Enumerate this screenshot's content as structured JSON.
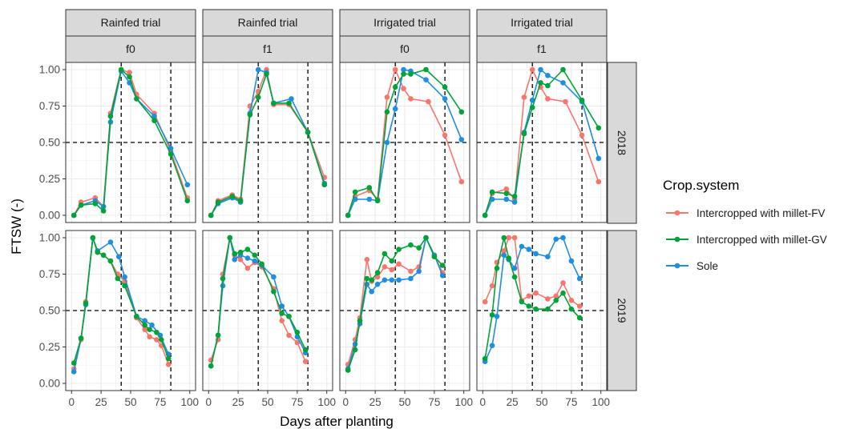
{
  "chart_data": {
    "type": "line",
    "xlabel": "Days after planting",
    "ylabel": "FTSW (-)",
    "xlim": [
      0,
      100
    ],
    "ylim": [
      0,
      1
    ],
    "x_ticks": [
      "0",
      "25",
      "50",
      "75",
      "100"
    ],
    "y_ticks": [
      "0.00",
      "0.25",
      "0.50",
      "0.75",
      "1.00"
    ],
    "y_tick_values": [
      0,
      0.25,
      0.5,
      0.75,
      1.0
    ],
    "x_tick_values": [
      0,
      25,
      50,
      75,
      100
    ],
    "grid": true,
    "legend_position": "right",
    "legend": {
      "title": "Crop.system",
      "entries": [
        {
          "name": "Intercropped with millet-FV",
          "color": "#f8766d"
        },
        {
          "name": "Intercropped with millet-GV",
          "color": "#00a339"
        },
        {
          "name": "Sole",
          "color": "#1f8ee0"
        }
      ]
    },
    "reference_lines": {
      "vertical_x": [
        42,
        84
      ],
      "horizontal_y": 0.5
    },
    "column_strips": [
      {
        "trial": "Rainfed trial",
        "f": "f0"
      },
      {
        "trial": "Rainfed trial",
        "f": "f1"
      },
      {
        "trial": "Irrigated trial",
        "f": "f0"
      },
      {
        "trial": "Irrigated trial",
        "f": "f1"
      }
    ],
    "row_strips": [
      "2018",
      "2019"
    ],
    "panels": [
      {
        "row": 0,
        "col": 0,
        "series": [
          {
            "name": "Intercropped with millet-FV",
            "x": [
              2,
              8,
              20,
              27,
              33,
              42,
              49,
              55,
              70,
              84,
              98
            ],
            "y": [
              0.0,
              0.09,
              0.12,
              0.06,
              0.7,
              1.0,
              0.98,
              0.83,
              0.7,
              0.44,
              0.12
            ]
          },
          {
            "name": "Intercropped with millet-GV",
            "x": [
              2,
              8,
              20,
              27,
              33,
              42,
              49,
              55,
              70,
              84,
              98
            ],
            "y": [
              0.0,
              0.07,
              0.08,
              0.03,
              0.68,
              1.0,
              0.95,
              0.8,
              0.65,
              0.42,
              0.1
            ]
          },
          {
            "name": "Sole",
            "x": [
              2,
              8,
              20,
              27,
              33,
              42,
              49,
              55,
              70,
              84,
              98
            ],
            "y": [
              0.0,
              0.07,
              0.1,
              0.06,
              0.64,
              0.99,
              0.91,
              0.8,
              0.68,
              0.46,
              0.21
            ]
          }
        ]
      },
      {
        "row": 0,
        "col": 1,
        "series": [
          {
            "name": "Intercropped with millet-FV",
            "x": [
              2,
              8,
              20,
              27,
              35,
              42,
              49,
              55,
              68,
              84,
              98
            ],
            "y": [
              0.0,
              0.1,
              0.14,
              0.11,
              0.75,
              0.85,
              1.0,
              0.76,
              0.76,
              0.57,
              0.26
            ]
          },
          {
            "name": "Intercropped with millet-GV",
            "x": [
              2,
              8,
              20,
              27,
              35,
              42,
              49,
              55,
              68,
              84,
              98
            ],
            "y": [
              0.0,
              0.09,
              0.13,
              0.1,
              0.69,
              0.81,
              0.97,
              0.77,
              0.77,
              0.57,
              0.21
            ]
          },
          {
            "name": "Sole",
            "x": [
              2,
              8,
              20,
              27,
              35,
              42,
              49,
              55,
              70,
              84,
              98
            ],
            "y": [
              0.0,
              0.08,
              0.12,
              0.09,
              0.7,
              1.0,
              0.98,
              0.77,
              0.8,
              0.57,
              0.22
            ]
          }
        ]
      },
      {
        "row": 0,
        "col": 2,
        "series": [
          {
            "name": "Intercropped with millet-FV",
            "x": [
              2,
              8,
              20,
              27,
              35,
              42,
              49,
              55,
              70,
              84,
              98
            ],
            "y": [
              0.0,
              0.13,
              0.17,
              0.11,
              0.81,
              1.0,
              0.87,
              0.8,
              0.78,
              0.55,
              0.23
            ]
          },
          {
            "name": "Intercropped with millet-GV",
            "x": [
              2,
              8,
              20,
              27,
              35,
              42,
              49,
              55,
              68,
              84,
              98
            ],
            "y": [
              0.0,
              0.16,
              0.19,
              0.1,
              0.71,
              0.88,
              0.97,
              0.97,
              1.0,
              0.88,
              0.71
            ]
          },
          {
            "name": "Sole",
            "x": [
              2,
              8,
              20,
              27,
              35,
              42,
              49,
              55,
              68,
              84,
              98
            ],
            "y": [
              0.0,
              0.11,
              0.11,
              0.1,
              0.5,
              0.73,
              1.0,
              0.99,
              0.93,
              0.8,
              0.52
            ]
          }
        ]
      },
      {
        "row": 0,
        "col": 3,
        "series": [
          {
            "name": "Intercropped with millet-FV",
            "x": [
              2,
              8,
              20,
              27,
              35,
              42,
              49,
              55,
              70,
              84,
              98
            ],
            "y": [
              0.0,
              0.15,
              0.18,
              0.11,
              0.81,
              1.0,
              0.88,
              0.8,
              0.78,
              0.55,
              0.23
            ]
          },
          {
            "name": "Intercropped with millet-GV",
            "x": [
              2,
              8,
              20,
              27,
              35,
              42,
              49,
              55,
              68,
              84,
              98
            ],
            "y": [
              0.0,
              0.16,
              0.15,
              0.13,
              0.56,
              0.74,
              0.91,
              0.89,
              1.0,
              0.79,
              0.6
            ]
          },
          {
            "name": "Sole",
            "x": [
              2,
              8,
              20,
              27,
              35,
              42,
              49,
              55,
              68,
              84,
              98
            ],
            "y": [
              0.0,
              0.11,
              0.11,
              0.09,
              0.57,
              0.79,
              1.0,
              0.96,
              0.91,
              0.78,
              0.39
            ]
          }
        ]
      },
      {
        "row": 1,
        "col": 0,
        "series": [
          {
            "name": "Intercropped with millet-FV",
            "x": [
              2,
              8,
              12,
              18,
              22,
              27,
              33,
              39,
              45,
              55,
              62,
              66,
              72,
              76,
              82
            ],
            "y": [
              0.1,
              0.3,
              0.56,
              1.0,
              0.9,
              0.88,
              0.84,
              0.75,
              0.7,
              0.45,
              0.37,
              0.32,
              0.3,
              0.26,
              0.13
            ]
          },
          {
            "name": "Intercropped with millet-GV",
            "x": [
              2,
              8,
              12,
              18,
              22,
              27,
              33,
              39,
              45,
              55,
              62,
              66,
              72,
              76,
              82
            ],
            "y": [
              0.14,
              0.31,
              0.55,
              1.0,
              0.9,
              0.88,
              0.84,
              0.72,
              0.67,
              0.46,
              0.4,
              0.37,
              0.35,
              0.3,
              0.17
            ]
          },
          {
            "name": "Sole",
            "x": [
              2,
              8,
              12,
              18,
              22,
              33,
              40,
              45,
              55,
              62,
              68,
              75,
              82
            ],
            "y": [
              0.08,
              0.31,
              0.54,
              1.0,
              0.91,
              0.97,
              0.87,
              0.73,
              0.46,
              0.43,
              0.4,
              0.33,
              0.2
            ]
          }
        ]
      },
      {
        "row": 1,
        "col": 1,
        "series": [
          {
            "name": "Intercropped with millet-FV",
            "x": [
              2,
              8,
              12,
              18,
              22,
              27,
              33,
              39,
              45,
              55,
              62,
              68,
              75,
              82
            ],
            "y": [
              0.16,
              0.3,
              0.75,
              1.0,
              0.88,
              0.85,
              0.79,
              0.83,
              0.8,
              0.65,
              0.43,
              0.33,
              0.28,
              0.15
            ]
          },
          {
            "name": "Intercropped with millet-GV",
            "x": [
              2,
              8,
              12,
              18,
              22,
              27,
              33,
              39,
              45,
              55,
              62,
              68,
              75,
              82
            ],
            "y": [
              0.12,
              0.33,
              0.72,
              1.0,
              0.89,
              0.9,
              0.92,
              0.88,
              0.82,
              0.63,
              0.48,
              0.46,
              0.35,
              0.23
            ]
          },
          {
            "name": "Sole",
            "x": [
              2,
              8,
              12,
              18,
              22,
              27,
              33,
              39,
              45,
              55,
              62,
              68,
              75,
              82
            ],
            "y": [
              0.12,
              0.33,
              0.67,
              1.0,
              0.85,
              0.88,
              0.86,
              0.84,
              0.81,
              0.73,
              0.53,
              0.46,
              0.32,
              0.21
            ]
          }
        ]
      },
      {
        "row": 1,
        "col": 2,
        "series": [
          {
            "name": "Intercropped with millet-FV",
            "x": [
              2,
              8,
              12,
              18,
              22,
              27,
              33,
              39,
              45,
              55,
              62,
              68,
              75,
              82
            ],
            "y": [
              0.13,
              0.3,
              0.45,
              0.85,
              0.7,
              0.73,
              0.8,
              0.78,
              0.82,
              0.77,
              0.8,
              1.0,
              0.88,
              0.76
            ]
          },
          {
            "name": "Intercropped with millet-GV",
            "x": [
              2,
              8,
              12,
              18,
              22,
              27,
              33,
              39,
              45,
              55,
              62,
              68,
              75,
              82
            ],
            "y": [
              0.09,
              0.23,
              0.43,
              0.72,
              0.71,
              0.76,
              0.89,
              0.84,
              0.92,
              0.95,
              0.93,
              1.0,
              0.87,
              0.81
            ]
          },
          {
            "name": "Sole",
            "x": [
              2,
              8,
              12,
              18,
              22,
              27,
              33,
              39,
              45,
              55,
              62,
              68,
              75,
              82
            ],
            "y": [
              0.1,
              0.27,
              0.41,
              0.68,
              0.63,
              0.68,
              0.71,
              0.71,
              0.71,
              0.72,
              0.77,
              1.0,
              0.88,
              0.74
            ]
          }
        ]
      },
      {
        "row": 1,
        "col": 3,
        "series": [
          {
            "name": "Intercropped with millet-FV",
            "x": [
              2,
              8,
              12,
              18,
              22,
              27,
              33,
              39,
              45,
              55,
              62,
              68,
              75,
              82
            ],
            "y": [
              0.56,
              0.67,
              0.83,
              0.91,
              1.0,
              1.0,
              0.57,
              0.6,
              0.62,
              0.58,
              0.6,
              0.69,
              0.57,
              0.53
            ]
          },
          {
            "name": "Intercropped with millet-GV",
            "x": [
              2,
              8,
              12,
              18,
              22,
              27,
              33,
              39,
              45,
              55,
              62,
              68,
              75,
              82
            ],
            "y": [
              0.17,
              0.47,
              0.79,
              1.0,
              0.86,
              0.73,
              0.56,
              0.53,
              0.51,
              0.51,
              0.57,
              0.62,
              0.51,
              0.45
            ]
          },
          {
            "name": "Sole",
            "x": [
              2,
              8,
              12,
              18,
              22,
              27,
              33,
              39,
              45,
              55,
              62,
              68,
              75,
              82
            ],
            "y": [
              0.15,
              0.26,
              0.46,
              0.88,
              0.85,
              0.79,
              0.94,
              0.92,
              0.89,
              0.87,
              0.99,
              1.0,
              0.84,
              0.72
            ]
          }
        ]
      }
    ]
  }
}
